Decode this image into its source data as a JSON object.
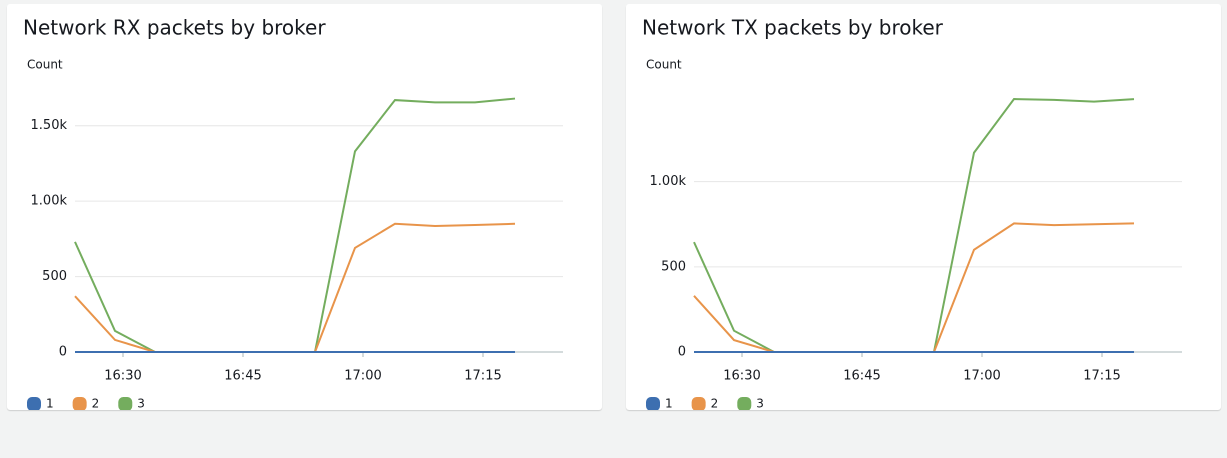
{
  "chart_data": [
    {
      "type": "line",
      "title": "Network RX packets by broker",
      "ylabel": "Count",
      "x": [
        "16:24",
        "16:29",
        "16:34",
        "16:39",
        "16:44",
        "16:49",
        "16:54",
        "16:59",
        "17:04",
        "17:09",
        "17:14",
        "17:19"
      ],
      "xlim": [
        "16:24",
        "17:25"
      ],
      "xticks": [
        "16:30",
        "16:45",
        "17:00",
        "17:15"
      ],
      "ylim": [
        0,
        1750
      ],
      "yticks": [
        0,
        500,
        {
          "value": 1000,
          "label": "1.00k"
        },
        {
          "value": 1500,
          "label": "1.50k"
        }
      ],
      "grid": true,
      "series": [
        {
          "name": "1",
          "color": "#3d6fb0",
          "values": [
            0,
            0,
            0,
            0,
            0,
            0,
            0,
            0,
            0,
            0,
            0,
            0
          ]
        },
        {
          "name": "2",
          "color": "#e8944a",
          "values": [
            370,
            80,
            0,
            0,
            0,
            0,
            0,
            690,
            850,
            835,
            842,
            850
          ]
        },
        {
          "name": "3",
          "color": "#74ad5e",
          "values": [
            730,
            140,
            0,
            0,
            0,
            0,
            0,
            1330,
            1670,
            1655,
            1655,
            1680
          ]
        }
      ]
    },
    {
      "type": "line",
      "title": "Network TX packets by broker",
      "ylabel": "Count",
      "x": [
        "16:24",
        "16:29",
        "16:34",
        "16:39",
        "16:44",
        "16:49",
        "16:54",
        "16:59",
        "17:04",
        "17:09",
        "17:14",
        "17:19"
      ],
      "xlim": [
        "16:24",
        "17:25"
      ],
      "xticks": [
        "16:30",
        "16:45",
        "17:00",
        "17:15"
      ],
      "ylim": [
        0,
        1550
      ],
      "yticks": [
        0,
        500,
        {
          "value": 1000,
          "label": "1.00k"
        }
      ],
      "grid": true,
      "series": [
        {
          "name": "1",
          "color": "#3d6fb0",
          "values": [
            0,
            0,
            0,
            0,
            0,
            0,
            0,
            0,
            0,
            0,
            0,
            0
          ]
        },
        {
          "name": "2",
          "color": "#e8944a",
          "values": [
            330,
            70,
            0,
            0,
            0,
            0,
            0,
            600,
            755,
            745,
            750,
            755
          ]
        },
        {
          "name": "3",
          "color": "#74ad5e",
          "values": [
            645,
            125,
            0,
            0,
            0,
            0,
            0,
            1170,
            1485,
            1480,
            1470,
            1485
          ]
        }
      ]
    }
  ]
}
